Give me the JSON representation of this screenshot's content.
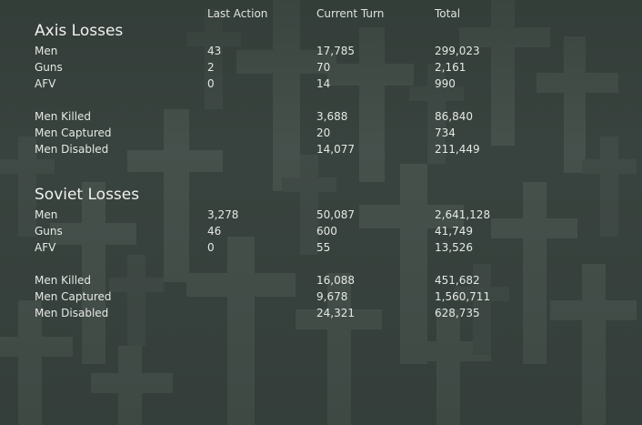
{
  "columns": {
    "last_action": "Last Action",
    "current_turn": "Current Turn",
    "total": "Total"
  },
  "axis": {
    "title": "Axis Losses",
    "rows": [
      {
        "label": "Men",
        "last": "43",
        "turn": "17,785",
        "total": "299,023"
      },
      {
        "label": "Guns",
        "last": "2",
        "turn": "70",
        "total": "2,161"
      },
      {
        "label": "AFV",
        "last": "0",
        "turn": "14",
        "total": "990"
      },
      {
        "label": "Men Killed",
        "last": "",
        "turn": "3,688",
        "total": "86,840"
      },
      {
        "label": "Men Captured",
        "last": "",
        "turn": "20",
        "total": "734"
      },
      {
        "label": "Men Disabled",
        "last": "",
        "turn": "14,077",
        "total": "211,449"
      }
    ]
  },
  "soviet": {
    "title": "Soviet Losses",
    "rows": [
      {
        "label": "Men",
        "last": "3,278",
        "turn": "50,087",
        "total": "2,641,128"
      },
      {
        "label": "Guns",
        "last": "46",
        "turn": "600",
        "total": "41,749"
      },
      {
        "label": "AFV",
        "last": "0",
        "turn": "55",
        "total": "13,526"
      },
      {
        "label": "Men Killed",
        "last": "",
        "turn": "16,088",
        "total": "451,682"
      },
      {
        "label": "Men Captured",
        "last": "",
        "turn": "9,678",
        "total": "1,560,711"
      },
      {
        "label": "Men Disabled",
        "last": "",
        "turn": "24,321",
        "total": "628,735"
      }
    ]
  },
  "colors": {
    "background": "#3b4540",
    "cross": "#4d5852",
    "text": "#e6e9e4"
  }
}
